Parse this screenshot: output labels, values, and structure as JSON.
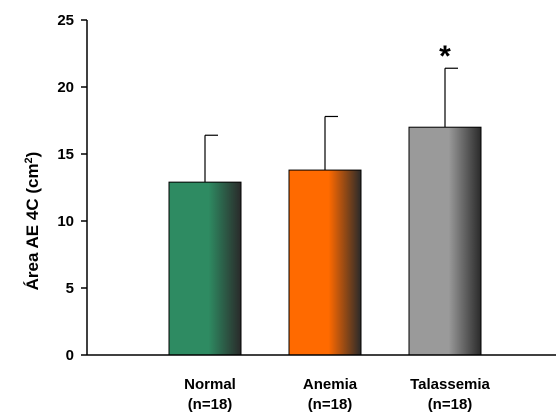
{
  "chart_data": {
    "type": "bar",
    "title": "",
    "xlabel": "",
    "ylabel": "Área AE 4C (cm",
    "ylabel_superscript": "2",
    "ylabel_suffix": ")",
    "ylim": [
      0,
      25
    ],
    "yticks": [
      "0",
      "5",
      "10",
      "15",
      "20",
      "25"
    ],
    "grid": false,
    "categories": [
      {
        "name": "Normal",
        "n": "(n=18)"
      },
      {
        "name": "Anemia",
        "n": "(n=18)"
      },
      {
        "name": "Talassemia",
        "n": "(n=18)"
      }
    ],
    "values": [
      12.9,
      13.8,
      17.0
    ],
    "error_upper": [
      3.5,
      4.0,
      4.4
    ],
    "annotations": [
      "",
      "",
      "*"
    ],
    "colors": [
      "#2e8b62",
      "#ff6a00",
      "#9a9a9a"
    ]
  }
}
